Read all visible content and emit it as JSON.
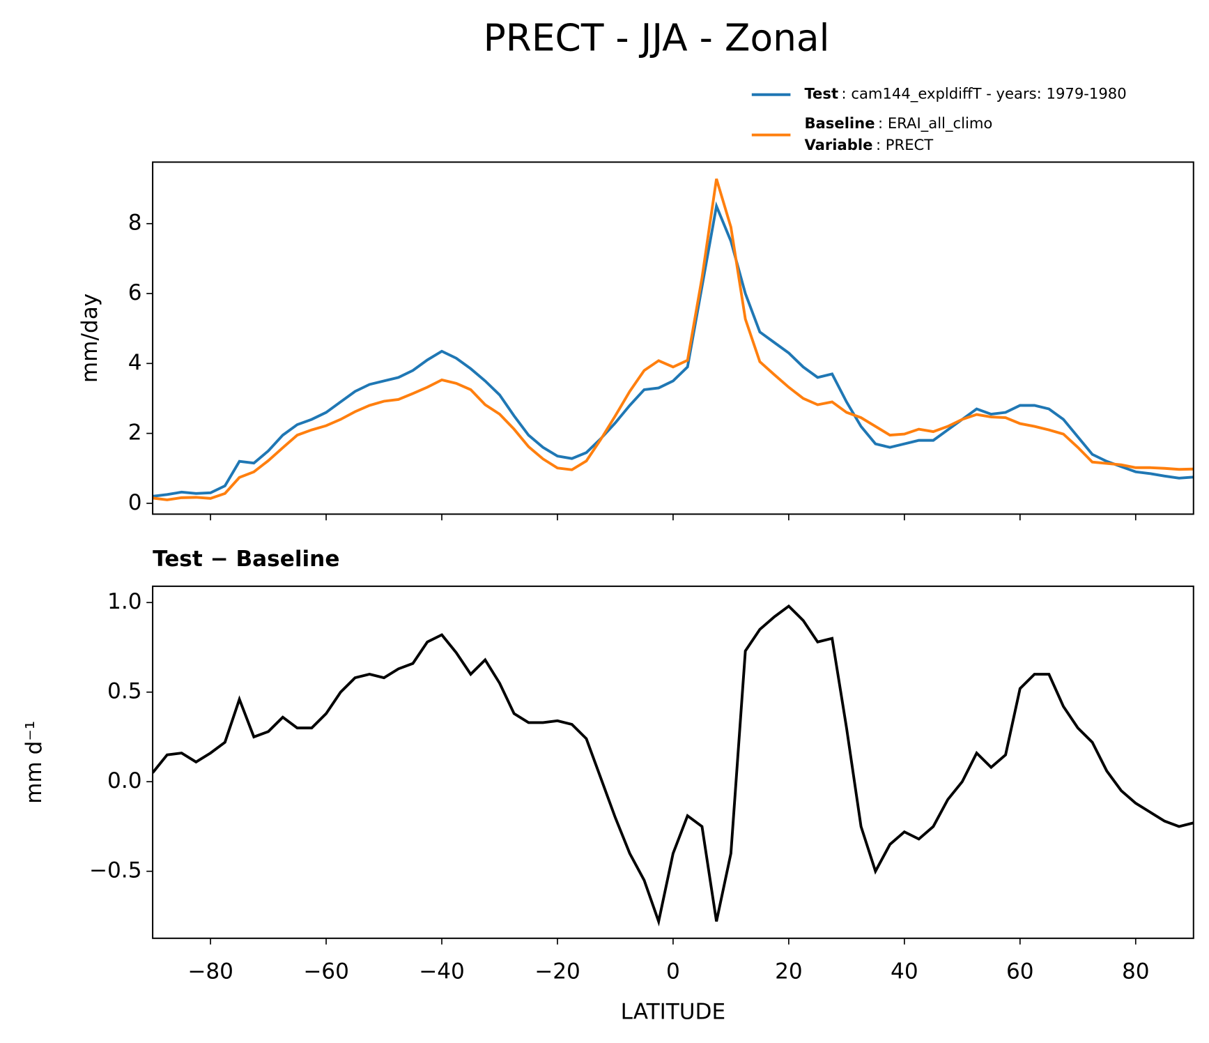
{
  "title": "PRECT - JJA - Zonal",
  "chart_data": [
    {
      "type": "line",
      "ylabel": "mm/day",
      "x": [
        -90,
        -87.5,
        -85,
        -82.5,
        -80,
        -77.5,
        -75,
        -72.5,
        -70,
        -67.5,
        -65,
        -62.5,
        -60,
        -57.5,
        -55,
        -52.5,
        -50,
        -47.5,
        -45,
        -42.5,
        -40,
        -37.5,
        -35,
        -32.5,
        -30,
        -27.5,
        -25,
        -22.5,
        -20,
        -17.5,
        -15,
        -12.5,
        -10,
        -7.5,
        -5,
        -2.5,
        0,
        2.5,
        5,
        7.5,
        10,
        12.5,
        15,
        17.5,
        20,
        22.5,
        25,
        27.5,
        30,
        32.5,
        35,
        37.5,
        40,
        42.5,
        45,
        47.5,
        50,
        52.5,
        55,
        57.5,
        60,
        62.5,
        65,
        67.5,
        70,
        72.5,
        75,
        77.5,
        80,
        82.5,
        85,
        87.5,
        90
      ],
      "series": [
        {
          "name": "Test",
          "detail": ": cam144_expldiffT - years: 1979-1980",
          "color": "#1f77b4",
          "values": [
            0.2,
            0.25,
            0.32,
            0.28,
            0.3,
            0.5,
            1.2,
            1.15,
            1.5,
            1.95,
            2.25,
            2.4,
            2.6,
            2.9,
            3.2,
            3.4,
            3.5,
            3.6,
            3.8,
            4.1,
            4.35,
            4.15,
            3.85,
            3.5,
            3.1,
            2.5,
            1.95,
            1.6,
            1.35,
            1.28,
            1.45,
            1.85,
            2.3,
            2.8,
            3.25,
            3.3,
            3.5,
            3.9,
            6.2,
            8.5,
            7.5,
            6.0,
            4.9,
            4.6,
            4.3,
            3.9,
            3.6,
            3.7,
            2.9,
            2.2,
            1.7,
            1.6,
            1.7,
            1.8,
            1.8,
            2.1,
            2.4,
            2.7,
            2.55,
            2.6,
            2.8,
            2.8,
            2.7,
            2.4,
            1.9,
            1.4,
            1.2,
            1.05,
            0.9,
            0.85,
            0.78,
            0.72,
            0.75
          ]
        },
        {
          "name": "Baseline",
          "detail": ": ERAI_all_climo",
          "extra": {
            "name": "Variable",
            "detail": ": PRECT"
          },
          "color": "#ff7f0e",
          "values": [
            0.15,
            0.1,
            0.16,
            0.17,
            0.14,
            0.28,
            0.74,
            0.9,
            1.22,
            1.59,
            1.95,
            2.1,
            2.22,
            2.4,
            2.62,
            2.8,
            2.92,
            2.97,
            3.14,
            3.32,
            3.53,
            3.43,
            3.25,
            2.82,
            2.55,
            2.12,
            1.62,
            1.27,
            1.01,
            0.96,
            1.21,
            1.83,
            2.5,
            3.2,
            3.8,
            4.08,
            3.9,
            4.09,
            6.45,
            9.28,
            7.9,
            5.27,
            4.05,
            3.68,
            3.32,
            3.0,
            2.82,
            2.9,
            2.6,
            2.45,
            2.2,
            1.95,
            1.98,
            2.12,
            2.05,
            2.2,
            2.4,
            2.54,
            2.47,
            2.45,
            2.28,
            2.2,
            2.1,
            1.98,
            1.6,
            1.18,
            1.14,
            1.1,
            1.02,
            1.02,
            1.0,
            0.97,
            0.98
          ]
        }
      ],
      "xlim": [
        -90,
        90
      ],
      "xticks": [
        -80,
        -60,
        -40,
        -20,
        0,
        20,
        40,
        60,
        80
      ],
      "ylim": [
        -0.31,
        9.76
      ],
      "yticks": [
        0,
        2,
        4,
        6,
        8
      ]
    },
    {
      "type": "line",
      "title": "Test − Baseline",
      "ylabel": "mm d⁻¹",
      "xlabel": "LATITUDE",
      "x": [
        -90,
        -87.5,
        -85,
        -82.5,
        -80,
        -77.5,
        -75,
        -72.5,
        -70,
        -67.5,
        -65,
        -62.5,
        -60,
        -57.5,
        -55,
        -52.5,
        -50,
        -47.5,
        -45,
        -42.5,
        -40,
        -37.5,
        -35,
        -32.5,
        -30,
        -27.5,
        -25,
        -22.5,
        -20,
        -17.5,
        -15,
        -12.5,
        -10,
        -7.5,
        -5,
        -2.5,
        0,
        2.5,
        5,
        7.5,
        10,
        12.5,
        15,
        17.5,
        20,
        22.5,
        25,
        27.5,
        30,
        32.5,
        35,
        37.5,
        40,
        42.5,
        45,
        47.5,
        50,
        52.5,
        55,
        57.5,
        60,
        62.5,
        65,
        67.5,
        70,
        72.5,
        75,
        77.5,
        80,
        82.5,
        85,
        87.5,
        90
      ],
      "series": [
        {
          "color": "#000000",
          "values": [
            0.05,
            0.15,
            0.16,
            0.11,
            0.16,
            0.22,
            0.46,
            0.25,
            0.28,
            0.36,
            0.3,
            0.3,
            0.38,
            0.5,
            0.58,
            0.6,
            0.58,
            0.63,
            0.66,
            0.78,
            0.82,
            0.72,
            0.6,
            0.68,
            0.55,
            0.38,
            0.33,
            0.33,
            0.34,
            0.32,
            0.24,
            0.02,
            -0.2,
            -0.4,
            -0.55,
            -0.78,
            -0.4,
            -0.19,
            -0.25,
            -0.78,
            -0.4,
            0.73,
            0.85,
            0.92,
            0.98,
            0.9,
            0.78,
            0.8,
            0.3,
            -0.25,
            -0.5,
            -0.35,
            -0.28,
            -0.32,
            -0.25,
            -0.1,
            0.0,
            0.16,
            0.08,
            0.15,
            0.52,
            0.6,
            0.6,
            0.42,
            0.3,
            0.22,
            0.06,
            -0.05,
            -0.12,
            -0.17,
            -0.22,
            -0.25,
            -0.23
          ]
        }
      ],
      "xlim": [
        -90,
        90
      ],
      "xticks": [
        {
          "value": -80,
          "label": "−80"
        },
        {
          "value": -60,
          "label": "−60"
        },
        {
          "value": -40,
          "label": "−40"
        },
        {
          "value": -20,
          "label": "−20"
        },
        0,
        20,
        40,
        60,
        80
      ],
      "ylim": [
        -0.874,
        1.091
      ],
      "yticks": [
        {
          "value": -0.5,
          "label": "−0.5"
        },
        {
          "value": 0,
          "label": "0.0"
        },
        {
          "value": 0.5,
          "label": "0.5"
        },
        {
          "value": 1,
          "label": "1.0"
        }
      ]
    }
  ]
}
